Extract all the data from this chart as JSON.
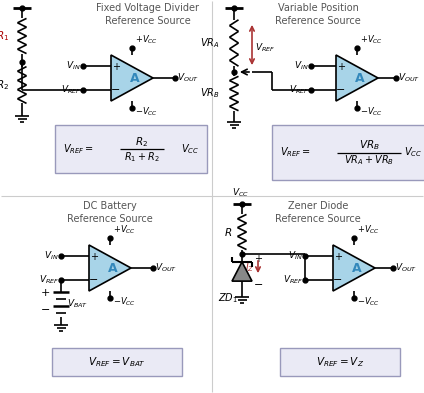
{
  "bg_color": "#ffffff",
  "panel_line_color": "#cccccc",
  "wire_color": "#000000",
  "comp_fill": "#a8d4e8",
  "formula_bg": "#eaeaf5",
  "formula_border": "#9999bb",
  "title_color": "#555555",
  "vref_arrow_color": "#aa3333",
  "iz_arrow_color": "#aa3333",
  "r1_label_color": "#aa0000",
  "titles": [
    "Fixed Voltage Divider\nReference Source",
    "Variable Position\nReference Source",
    "DC Battery\nReference Source",
    "Zener Diode\nReference Source"
  ]
}
